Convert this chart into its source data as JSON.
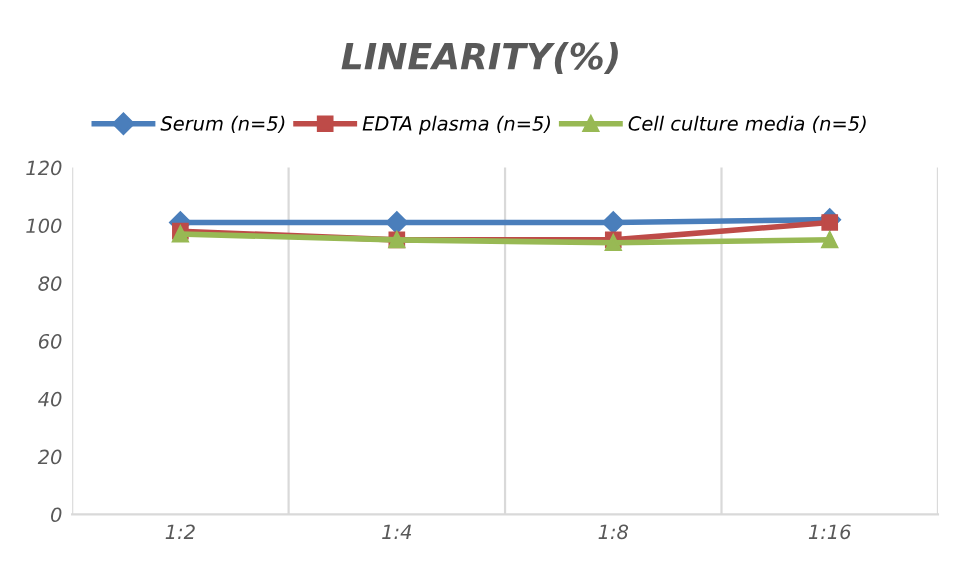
{
  "chart_data": {
    "type": "line",
    "title": "LINEARITY(%)",
    "categories": [
      "1:2",
      "1:4",
      "1:8",
      "1:16"
    ],
    "series": [
      {
        "name": "Serum (n=5)",
        "color": "#4a7ebb",
        "marker": "diamond",
        "values": [
          101,
          101,
          101,
          102
        ]
      },
      {
        "name": "EDTA plasma (n=5)",
        "color": "#be4b48",
        "marker": "square",
        "values": [
          98,
          95,
          95,
          101
        ]
      },
      {
        "name": "Cell culture media (n=5)",
        "color": "#98b954",
        "marker": "triangle",
        "values": [
          97,
          95,
          94,
          95
        ]
      }
    ],
    "ylim": [
      0,
      120
    ],
    "yticks": [
      0,
      20,
      40,
      60,
      80,
      100,
      120
    ],
    "grid": "x",
    "legend": "top"
  }
}
